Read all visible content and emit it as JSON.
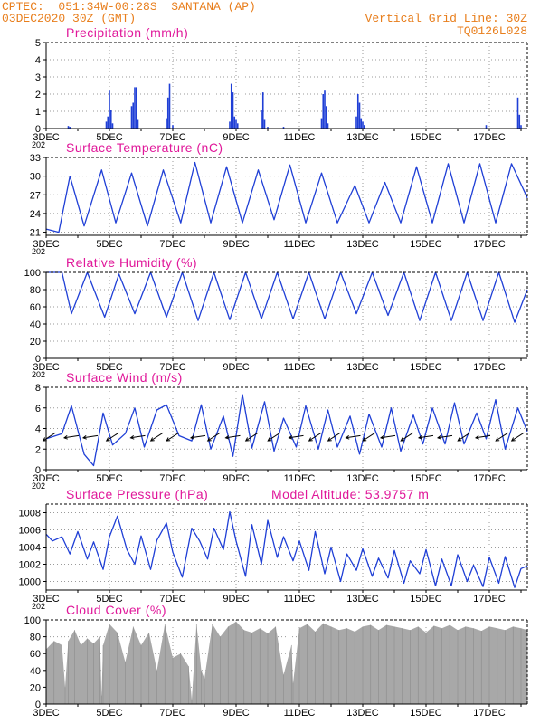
{
  "header": {
    "left_line1": "CPTEC:  051:34W-00:28S  SANTANA (AP)",
    "left_line2": "03DEC2020 30Z (GMT)",
    "right_line1": "Vertical Grid Line: 30Z",
    "right_line2": "TQ0126L028"
  },
  "colors": {
    "header": "#e87e1c",
    "title": "#e0189a",
    "series": "#1f3fd6",
    "cloud": "#a8a8a8",
    "grid": "#9a9a9a",
    "axis": "#000000"
  },
  "x_axis": {
    "start_label": "3DEC",
    "tick_labels": [
      "3DEC",
      "5DEC",
      "7DEC",
      "9DEC",
      "11DEC",
      "13DEC",
      "15DEC",
      "17DEC"
    ],
    "year_fragment": "202",
    "day_start": 3,
    "day_end": 18.2
  },
  "chart_data": [
    {
      "type": "bar",
      "title": "Precipitation (mm/h)",
      "ylim": [
        0,
        5
      ],
      "yticks": [
        0,
        1,
        2,
        3,
        4,
        5
      ],
      "x_days": [
        3.7,
        3.75,
        4.9,
        4.95,
        5.0,
        5.05,
        5.1,
        5.7,
        5.75,
        5.8,
        5.85,
        5.9,
        6.8,
        6.85,
        6.9,
        7.0,
        8.8,
        8.85,
        8.9,
        8.95,
        9.0,
        9.05,
        9.8,
        9.85,
        9.9,
        10.0,
        10.5,
        11.7,
        11.75,
        11.8,
        11.85,
        11.9,
        12.8,
        12.85,
        12.9,
        12.95,
        13.0,
        13.05,
        16.9,
        17.9,
        17.95,
        18.0
      ],
      "values": [
        0.15,
        0.1,
        0.4,
        0.7,
        2.2,
        1.1,
        0.3,
        1.3,
        1.5,
        2.4,
        2.4,
        0.5,
        0.6,
        1.8,
        2.6,
        0.2,
        0.4,
        2.6,
        2.1,
        0.7,
        0.5,
        0.3,
        1.1,
        2.1,
        0.5,
        0.1,
        0.1,
        0.6,
        2.0,
        2.2,
        1.3,
        0.3,
        0.7,
        2.0,
        1.5,
        0.6,
        0.4,
        0.2,
        0.2,
        1.8,
        0.8,
        0.2
      ]
    },
    {
      "type": "line",
      "title": "Surface Temperature (nC)",
      "ylim": [
        20.5,
        33
      ],
      "yticks": [
        21,
        24,
        27,
        30,
        33
      ],
      "x_days": [
        3.0,
        3.4,
        3.75,
        4.2,
        4.75,
        5.2,
        5.7,
        6.2,
        6.7,
        7.25,
        7.7,
        8.2,
        8.7,
        9.2,
        9.7,
        10.2,
        10.7,
        11.2,
        11.7,
        12.2,
        12.75,
        13.2,
        13.7,
        14.2,
        14.7,
        15.2,
        15.7,
        16.2,
        16.7,
        17.2,
        17.7,
        18.2
      ],
      "values": [
        21.5,
        21.0,
        30.0,
        22.0,
        31.0,
        22.5,
        30.5,
        22.0,
        31.0,
        22.5,
        32.2,
        22.5,
        31.5,
        22.5,
        31.0,
        23.0,
        31.8,
        22.5,
        30.5,
        22.5,
        28.5,
        22.5,
        29.0,
        22.5,
        31.5,
        22.5,
        32.0,
        22.5,
        32.0,
        22.5,
        32.0,
        26.5
      ]
    },
    {
      "type": "line",
      "title": "Relative Humidity (%)",
      "ylim": [
        0,
        100
      ],
      "yticks": [
        0,
        20,
        40,
        60,
        80,
        100
      ],
      "x_days": [
        3.0,
        3.5,
        3.8,
        4.3,
        4.85,
        5.3,
        5.8,
        6.3,
        6.8,
        7.3,
        7.8,
        8.3,
        8.8,
        9.3,
        9.8,
        10.3,
        10.8,
        11.3,
        11.8,
        12.3,
        12.8,
        13.3,
        13.8,
        14.3,
        14.8,
        15.3,
        15.8,
        16.3,
        16.8,
        17.3,
        17.8,
        18.2
      ],
      "values": [
        100,
        100,
        52,
        100,
        48,
        98,
        52,
        100,
        48,
        100,
        44,
        100,
        45,
        100,
        46,
        100,
        46,
        100,
        46,
        100,
        52,
        100,
        50,
        100,
        44,
        100,
        44,
        100,
        44,
        100,
        42,
        80
      ]
    },
    {
      "type": "line",
      "title": "Surface Wind (m/s)",
      "ylim": [
        0,
        8
      ],
      "yticks": [
        0,
        2,
        4,
        6,
        8
      ],
      "x_days": [
        3.0,
        3.5,
        3.8,
        4.2,
        4.5,
        4.8,
        5.1,
        5.5,
        5.8,
        6.1,
        6.5,
        6.8,
        7.2,
        7.6,
        7.9,
        8.2,
        8.6,
        8.9,
        9.2,
        9.5,
        9.9,
        10.2,
        10.5,
        10.9,
        11.2,
        11.6,
        11.9,
        12.2,
        12.6,
        12.9,
        13.2,
        13.6,
        13.9,
        14.2,
        14.6,
        14.9,
        15.2,
        15.6,
        15.9,
        16.2,
        16.6,
        16.9,
        17.2,
        17.5,
        17.9,
        18.2
      ],
      "values": [
        3.0,
        3.5,
        6.2,
        1.5,
        0.4,
        5.5,
        2.4,
        3.5,
        6.0,
        2.2,
        5.8,
        6.3,
        3.3,
        2.8,
        6.3,
        2.0,
        5.2,
        1.3,
        7.3,
        2.1,
        6.6,
        1.8,
        5.0,
        2.2,
        6.2,
        2.0,
        5.8,
        2.2,
        5.2,
        1.5,
        5.4,
        2.2,
        6.0,
        1.8,
        5.3,
        2.5,
        6.0,
        2.5,
        6.5,
        2.5,
        5.5,
        3.0,
        6.8,
        2.0,
        6.0,
        3.7
      ],
      "arrow_days": [
        3.1,
        3.8,
        4.4,
        5.1,
        5.9,
        6.5,
        7.0,
        7.8,
        8.3,
        8.9,
        9.5,
        10.2,
        10.9,
        11.5,
        12.1,
        12.7,
        13.2,
        13.8,
        14.4,
        15.0,
        15.6,
        16.2,
        16.8,
        17.4,
        17.9
      ],
      "arrow_directions": [
        "SW",
        "W",
        "W",
        "SW",
        "W",
        "SW",
        "SW",
        "W",
        "SW",
        "W",
        "SW",
        "SW",
        "W",
        "SW",
        "SW",
        "W",
        "SW",
        "W",
        "SW",
        "W",
        "W",
        "SW",
        "W",
        "SW",
        "SW"
      ]
    },
    {
      "type": "line",
      "title": "Surface Pressure (hPa)",
      "annotation": "Model Altitude: 53.9757 m",
      "ylim": [
        999,
        1009
      ],
      "yticks": [
        1000,
        1002,
        1004,
        1006,
        1008
      ],
      "x_days": [
        3.0,
        3.2,
        3.5,
        3.75,
        4.0,
        4.3,
        4.5,
        4.8,
        5.0,
        5.25,
        5.55,
        5.8,
        6.0,
        6.3,
        6.5,
        6.8,
        7.0,
        7.3,
        7.6,
        7.85,
        8.1,
        8.3,
        8.6,
        8.8,
        9.0,
        9.3,
        9.5,
        9.8,
        10.0,
        10.3,
        10.5,
        10.8,
        11.0,
        11.3,
        11.5,
        11.8,
        12.0,
        12.3,
        12.5,
        12.8,
        13.0,
        13.3,
        13.5,
        13.8,
        14.0,
        14.3,
        14.5,
        14.8,
        15.0,
        15.3,
        15.5,
        15.8,
        16.0,
        16.3,
        16.5,
        16.8,
        17.0,
        17.3,
        17.5,
        17.8,
        18.0,
        18.2
      ],
      "values": [
        1005.5,
        1004.7,
        1005.2,
        1003.2,
        1005.8,
        1002.6,
        1004.6,
        1001.4,
        1005.2,
        1007.6,
        1003.7,
        1002.0,
        1005.3,
        1001.4,
        1004.8,
        1006.8,
        1003.4,
        1000.5,
        1006.2,
        1004.7,
        1002.6,
        1006.2,
        1003.7,
        1008.1,
        1004.7,
        1000.6,
        1006.6,
        1002.0,
        1007.1,
        1002.8,
        1005.2,
        1002.4,
        1004.7,
        1001.3,
        1005.8,
        1000.9,
        1004.0,
        1000.0,
        1003.2,
        1001.3,
        1003.8,
        1000.6,
        1002.7,
        1000.4,
        1003.6,
        999.8,
        1002.4,
        1000.9,
        1003.7,
        999.5,
        1002.6,
        999.5,
        1003.1,
        1000.0,
        1001.9,
        999.4,
        1002.8,
        999.8,
        1002.9,
        999.3,
        1001.5,
        1001.8
      ]
    },
    {
      "type": "area",
      "title": "Cloud Cover (%)",
      "ylim": [
        0,
        100
      ],
      "yticks": [
        0,
        20,
        40,
        60,
        80,
        100
      ],
      "x_days": [
        3.0,
        3.25,
        3.5,
        3.6,
        3.7,
        3.9,
        4.1,
        4.3,
        4.5,
        4.7,
        4.75,
        4.8,
        5.0,
        5.25,
        5.5,
        5.75,
        6.0,
        6.25,
        6.5,
        6.75,
        7.0,
        7.25,
        7.5,
        7.6,
        7.75,
        7.9,
        8.0,
        8.25,
        8.5,
        8.75,
        9.0,
        9.25,
        9.5,
        9.75,
        10.0,
        10.25,
        10.5,
        10.75,
        10.8,
        11.0,
        11.25,
        11.5,
        11.75,
        12.0,
        12.25,
        12.5,
        12.75,
        13.0,
        13.25,
        13.5,
        13.75,
        14.0,
        14.25,
        14.5,
        14.75,
        15.0,
        15.25,
        15.5,
        15.75,
        16.0,
        16.25,
        16.5,
        16.75,
        17.0,
        17.25,
        17.5,
        17.75,
        18.0,
        18.2
      ],
      "values": [
        65,
        75,
        70,
        20,
        75,
        88,
        70,
        78,
        72,
        80,
        10,
        70,
        95,
        85,
        50,
        92,
        70,
        85,
        40,
        95,
        55,
        60,
        45,
        5,
        95,
        40,
        30,
        95,
        80,
        92,
        98,
        88,
        85,
        90,
        84,
        92,
        35,
        70,
        25,
        90,
        95,
        86,
        96,
        92,
        88,
        90,
        86,
        92,
        94,
        88,
        94,
        92,
        90,
        88,
        92,
        85,
        93,
        90,
        94,
        88,
        92,
        90,
        87,
        92,
        90,
        88,
        92,
        90,
        88
      ]
    }
  ]
}
